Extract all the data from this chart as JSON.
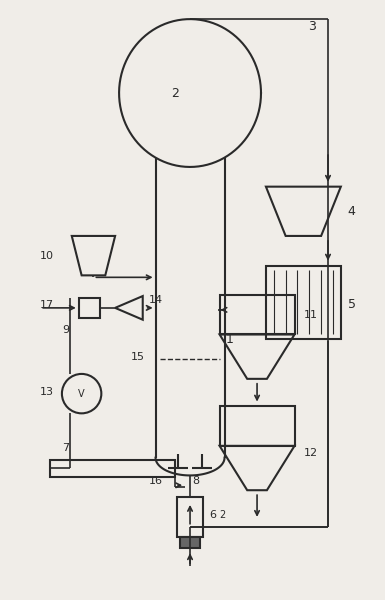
{
  "fig_width": 3.85,
  "fig_height": 6.0,
  "dpi": 100,
  "bg_color": "#f0ede8",
  "line_color": "#2a2a2a",
  "lw_main": 1.5,
  "lw_pipe": 1.2
}
